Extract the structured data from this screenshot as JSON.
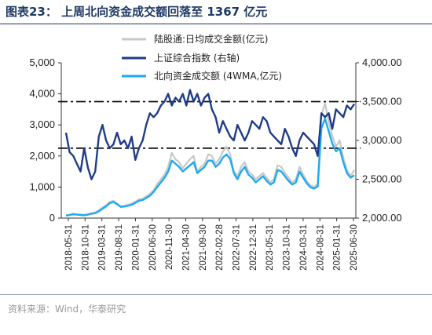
{
  "header": {
    "title": "图表23：  上周北向资金成交额回落至 1367 亿元"
  },
  "source": "资料来源：Wind，华泰研究",
  "colors": {
    "title": "#1f3864",
    "daily_turnover": "#c8c8c8",
    "index": "#1f3c88",
    "turnover_4wma": "#1eaaf0",
    "reference_lines": "#111111"
  },
  "chart_data": {
    "type": "line",
    "left_axis": {
      "ticks": [
        "0",
        "1,000",
        "2,000",
        "3,000",
        "4,000",
        "5,000"
      ],
      "range": [
        0,
        5000
      ]
    },
    "right_axis": {
      "ticks": [
        "2,000.00",
        "2,500.00",
        "3,000.00",
        "3,500.00",
        "4,000.00"
      ],
      "range": [
        2000,
        4000
      ]
    },
    "x_ticks": [
      "2018-05-31",
      "2018-10-31",
      "2019-03-31",
      "2019-08-31",
      "2020-01-31",
      "2020-06-30",
      "2020-11-30",
      "2021-04-30",
      "2021-09-30",
      "2022-02-28",
      "2022-07-31",
      "2022-12-31",
      "2023-05-31",
      "2023-10-31",
      "2024-03-31",
      "2024-08-31",
      "2025-01-31",
      "2025-06-30"
    ],
    "legend": {
      "daily": "陆股通:日均成交金额(亿元)",
      "index": "上证综合指数  (右轴)",
      "wma": "北向资金成交额  (4WMA,亿元)"
    },
    "reference_lines": [
      3500,
      2900
    ],
    "series": [
      {
        "name": "陆股通:日均成交金额(亿元)",
        "axis": "left",
        "values": [
          90,
          110,
          140,
          120,
          110,
          100,
          130,
          160,
          180,
          250,
          340,
          420,
          520,
          560,
          470,
          380,
          400,
          430,
          470,
          530,
          600,
          620,
          700,
          780,
          900,
          1100,
          1250,
          1400,
          1650,
          2100,
          1900,
          1800,
          1600,
          1750,
          1900,
          2000,
          1500,
          1650,
          1750,
          2050,
          2000,
          1750,
          1900,
          2150,
          2300,
          2050,
          1500,
          1350,
          1650,
          1800,
          1500,
          1400,
          1250,
          1350,
          1450,
          1300,
          1150,
          1250,
          1700,
          1650,
          1450,
          1300,
          1150,
          1250,
          1650,
          1400,
          1200,
          1050,
          1000,
          1100,
          3300,
          3700,
          3100,
          2650,
          2300,
          2500,
          1950,
          1550,
          1350,
          1550
        ]
      },
      {
        "name": "北向资金成交额  (4WMA,亿元)",
        "axis": "left",
        "values": [
          80,
          100,
          120,
          110,
          100,
          90,
          110,
          140,
          160,
          220,
          300,
          380,
          480,
          520,
          450,
          360,
          370,
          400,
          430,
          490,
          560,
          580,
          650,
          720,
          840,
          1000,
          1150,
          1300,
          1500,
          1850,
          1750,
          1650,
          1500,
          1600,
          1700,
          1800,
          1450,
          1550,
          1650,
          1850,
          1850,
          1650,
          1750,
          1950,
          2050,
          1900,
          1450,
          1250,
          1500,
          1650,
          1400,
          1300,
          1150,
          1250,
          1350,
          1200,
          1080,
          1150,
          1550,
          1500,
          1350,
          1200,
          1080,
          1150,
          1500,
          1300,
          1120,
          990,
          950,
          1020,
          2900,
          3200,
          2800,
          2400,
          2150,
          2250,
          1800,
          1450,
          1300,
          1380
        ]
      },
      {
        "name": "上证综合指数  (右轴)",
        "axis": "right",
        "values": [
          3100,
          2850,
          2800,
          2700,
          2600,
          2900,
          2650,
          2500,
          2600,
          3050,
          3200,
          3000,
          2900,
          2950,
          3100,
          2950,
          3000,
          2900,
          3050,
          2750,
          2900,
          3000,
          3200,
          3350,
          3300,
          3350,
          3450,
          3500,
          3600,
          3450,
          3550,
          3500,
          3600,
          3450,
          3650,
          3500,
          3600,
          3450,
          3550,
          3600,
          3400,
          3300,
          3100,
          3250,
          3150,
          3050,
          3000,
          3200,
          3100,
          3000,
          3100,
          3250,
          3200,
          3150,
          3300,
          3250,
          3100,
          3050,
          3000,
          2950,
          3150,
          3050,
          2900,
          2800,
          3000,
          3100,
          3050,
          3000,
          2950,
          2800,
          3350,
          3300,
          3350,
          3150,
          3400,
          3350,
          3300,
          3450,
          3400,
          3470
        ]
      }
    ]
  }
}
